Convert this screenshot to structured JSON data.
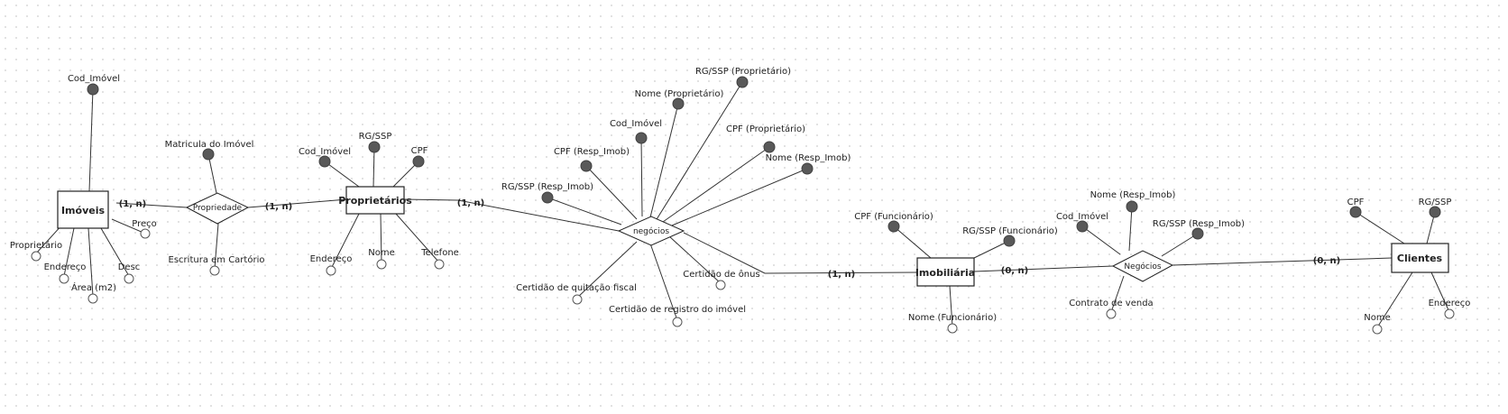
{
  "entities": {
    "imoveis": "Imóveis",
    "proprietarios": "Proprietários",
    "imobiliaria": "Imobiliária",
    "clientes": "Clientes"
  },
  "relationships": {
    "propriedade": "Propriedade",
    "negocios_prop": "negócios",
    "negocios_cli": "Negócios"
  },
  "cardinalities": {
    "imoveis_prop": "(1, n)",
    "prop_proprietarios": "(1, n)",
    "proprietarios_neg": "(1, n)",
    "neg_imobiliaria": "(1, n)",
    "imobiliaria_neg": "(0, n)",
    "neg_clientes": "(0, n)"
  },
  "attributes": {
    "imoveis": {
      "cod_imovel": "Cod_Imóvel",
      "proprietario": "Proprietário",
      "endereco": "Endereço",
      "area": "Área (m2)",
      "desc": "Desc",
      "preco": "Preço"
    },
    "propriedade": {
      "matricula": "Matricula do Imóvel",
      "escritura": "Escritura em Cartório"
    },
    "proprietarios": {
      "cod_imovel": "Cod_Imóvel",
      "rg_ssp": "RG/SSP",
      "cpf": "CPF",
      "endereco": "Endereço",
      "nome": "Nome",
      "telefone": "Telefone"
    },
    "negocios_prop": {
      "rg_prop": "RG/SSP (Proprietário)",
      "nome_prop": "Nome (Proprietário)",
      "cod_imovel": "Cod_Imóvel",
      "cpf_prop": "CPF (Proprietário)",
      "cpf_resp": "CPF (Resp_Imob)",
      "nome_resp": "Nome (Resp_Imob)",
      "rg_resp": "RG/SSP (Resp_Imob)",
      "cert_onus": "Certidão de ônus",
      "cert_quitacao": "Certidão de quitação fiscal",
      "cert_registro": "Certidão de registro do imóvel"
    },
    "imobiliaria": {
      "cpf_func": "CPF (Funcionário)",
      "rg_func": "RG/SSP (Funcionário)",
      "nome_func": "Nome (Funcionário)"
    },
    "negocios_cli": {
      "nome_resp": "Nome (Resp_Imob)",
      "cod_imovel": "Cod_Imóvel",
      "rg_resp": "RG/SSP (Resp_Imob)",
      "contrato": "Contrato de venda"
    },
    "clientes": {
      "cpf": "CPF",
      "rg_ssp": "RG/SSP",
      "nome": "Nome",
      "endereco": "Endereço"
    }
  },
  "colors": {
    "key_attribute": "#595959",
    "line": "#333333",
    "grid_dot": "#d9d9d9"
  }
}
